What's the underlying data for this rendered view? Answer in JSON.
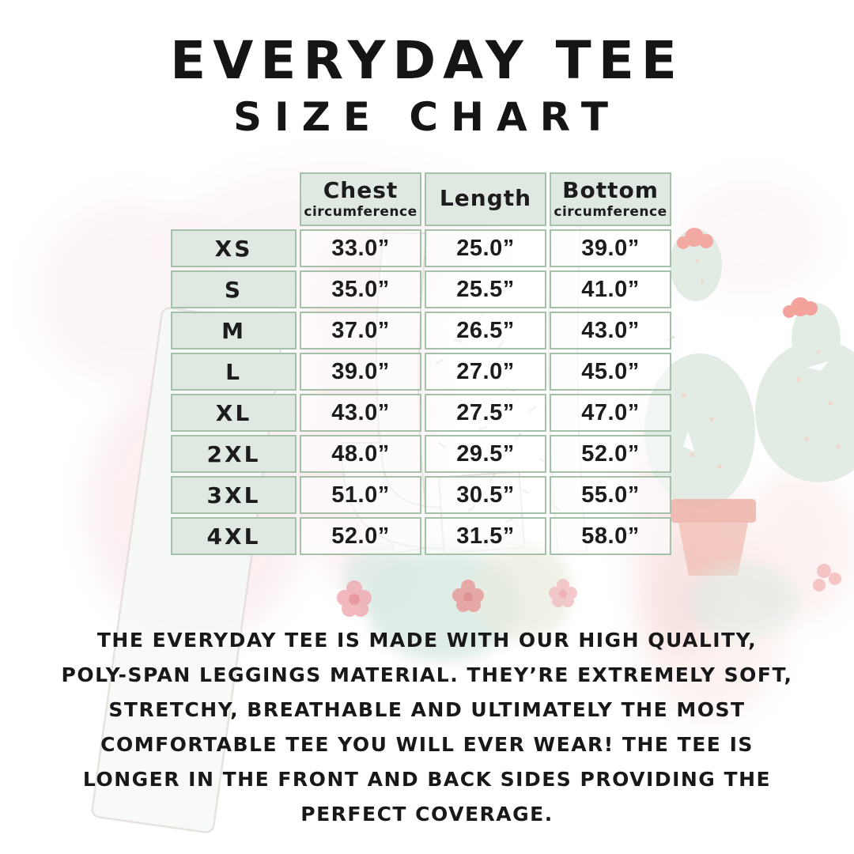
{
  "title": {
    "line1": "EVERYDAY TEE",
    "line2": "SIZE CHART"
  },
  "table": {
    "columns": [
      {
        "label": "Chest",
        "sub": "circumference"
      },
      {
        "label": "Length",
        "sub": ""
      },
      {
        "label": "Bottom",
        "sub": "circumference"
      }
    ],
    "rows": [
      {
        "size": "XS",
        "chest": "33.0”",
        "length": "25.0”",
        "bottom": "39.0”"
      },
      {
        "size": "S",
        "chest": "35.0”",
        "length": "25.5”",
        "bottom": "41.0”"
      },
      {
        "size": "M",
        "chest": "37.0”",
        "length": "26.5”",
        "bottom": "43.0”"
      },
      {
        "size": "L",
        "chest": "39.0”",
        "length": "27.0”",
        "bottom": "45.0”"
      },
      {
        "size": "XL",
        "chest": "43.0”",
        "length": "27.5”",
        "bottom": "47.0”"
      },
      {
        "size": "2XL",
        "chest": "48.0”",
        "length": "29.5”",
        "bottom": "52.0”"
      },
      {
        "size": "3XL",
        "chest": "51.0”",
        "length": "30.5”",
        "bottom": "55.0”"
      },
      {
        "size": "4XL",
        "chest": "52.0”",
        "length": "31.5”",
        "bottom": "58.0”"
      }
    ]
  },
  "description": {
    "lines": [
      "THE EVERYDAY TEE IS MADE WITH OUR HIGH QUALITY,",
      "POLY-SPAN LEGGINGS MATERIAL. THEY’RE EXTREMELY SOFT,",
      "STRETCHY, BREATHABLE AND ULTIMATELY THE MOST",
      "COMFORTABLE TEE YOU WILL EVER WEAR! THE TEE IS",
      "LONGER IN THE FRONT AND BACK SIDES PROVIDING THE",
      "PERFECT COVERAGE."
    ]
  },
  "colors": {
    "table_border": "#a6c1ab",
    "header_fill": "#dfe9e2",
    "text": "#1c1c1c",
    "cactus_green": "#e2ece5",
    "flower_pink": "#f3a9a3",
    "pot_terracotta": "#edb3a8",
    "wash_pink": "#f3ccd0",
    "wash_teal": "#d9e9e2"
  }
}
